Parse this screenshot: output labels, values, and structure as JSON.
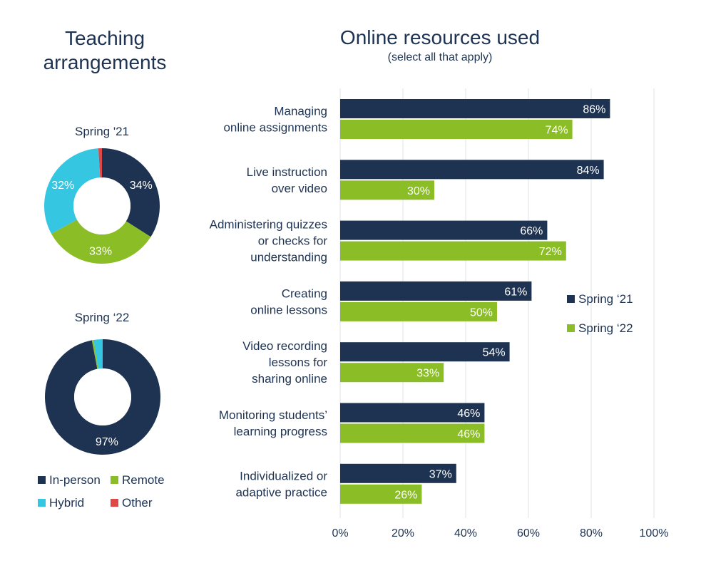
{
  "colors": {
    "navy": "#1e3352",
    "green": "#8bbd26",
    "cyan": "#35c6e1",
    "red": "#e04848",
    "grid": "#dfe4ea"
  },
  "chart_data": [
    {
      "type": "pie",
      "title": "Teaching arrangements",
      "subtitle": "Spring '21",
      "labels": [
        "In-person",
        "Remote",
        "Hybrid",
        "Other"
      ],
      "values": [
        34,
        33,
        32,
        1
      ],
      "display_labels": [
        "34%",
        "33%",
        "32%",
        ""
      ],
      "colors": [
        "#1e3352",
        "#8bbd26",
        "#35c6e1",
        "#e04848"
      ],
      "donut": true
    },
    {
      "type": "pie",
      "subtitle": "Spring ‘22",
      "labels": [
        "In-person",
        "Remote",
        "Hybrid",
        "Other"
      ],
      "values": [
        97,
        0.5,
        2.5,
        0
      ],
      "display_labels": [
        "97%",
        "",
        "",
        ""
      ],
      "colors": [
        "#1e3352",
        "#8bbd26",
        "#35c6e1",
        "#e04848"
      ],
      "donut": true,
      "legend": [
        "In-person",
        "Remote",
        "Hybrid",
        "Other"
      ]
    },
    {
      "type": "bar",
      "orientation": "horizontal",
      "title": "Online resources used",
      "subtitle": "(select all that apply)",
      "categories": [
        [
          "Managing",
          "online assignments"
        ],
        [
          "Live instruction",
          "over video"
        ],
        [
          "Administering quizzes",
          "or checks for",
          "understanding"
        ],
        [
          "Creating",
          "online lessons"
        ],
        [
          "Video recording",
          "lessons for",
          "sharing online"
        ],
        [
          "Monitoring students’",
          "learning progress"
        ],
        [
          "Individualized or",
          "adaptive practice"
        ]
      ],
      "series": [
        {
          "name": "Spring ‘21",
          "values": [
            86,
            84,
            66,
            61,
            54,
            46,
            37
          ],
          "color": "#1e3352"
        },
        {
          "name": "Spring ‘22",
          "values": [
            74,
            30,
            72,
            50,
            33,
            46,
            26
          ],
          "color": "#8bbd26"
        }
      ],
      "xlim": [
        0,
        100
      ],
      "xticks": [
        "0%",
        "20%",
        "40%",
        "60%",
        "80%",
        "100%"
      ],
      "grid": true,
      "legend_position": "right"
    }
  ]
}
